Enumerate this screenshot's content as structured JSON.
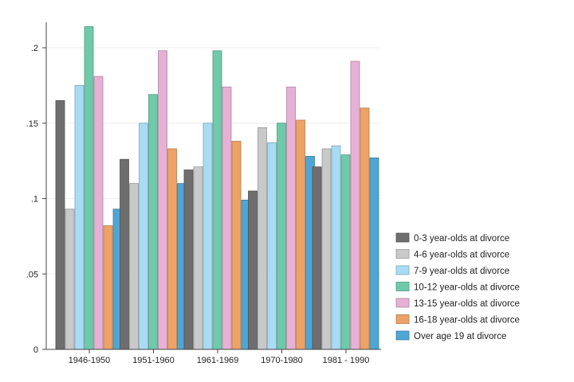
{
  "chart_data": {
    "type": "bar",
    "title": "",
    "xlabel": "",
    "ylabel": "",
    "ylim": [
      0,
      0.2
    ],
    "grid": true,
    "legend_position": "right",
    "y_ticks": [
      {
        "value": 0,
        "label": "0"
      },
      {
        "value": 0.05,
        "label": ".05"
      },
      {
        "value": 0.1,
        "label": ".1"
      },
      {
        "value": 0.15,
        "label": ".15"
      },
      {
        "value": 0.2,
        "label": ".2"
      }
    ],
    "categories": [
      "1946-1950",
      "1951-1960",
      "1961-1969",
      "1970-1980",
      "1981 - 1990"
    ],
    "series": [
      {
        "name": "0-3 year-olds at divorce",
        "color": "#6e6e6e",
        "values": [
          0.165,
          0.126,
          0.119,
          0.105,
          0.121
        ]
      },
      {
        "name": "4-6 year-olds at divorce",
        "color": "#c9c9c9",
        "values": [
          0.093,
          0.11,
          0.121,
          0.147,
          0.133
        ]
      },
      {
        "name": "7-9 year-olds at divorce",
        "color": "#a8dcf4",
        "values": [
          0.175,
          0.15,
          0.15,
          0.137,
          0.135
        ]
      },
      {
        "name": "10-12 year-olds at divorce",
        "color": "#6fcaaa",
        "values": [
          0.214,
          0.169,
          0.198,
          0.15,
          0.129
        ]
      },
      {
        "name": "13-15 year-olds at divorce",
        "color": "#e6b1d4",
        "values": [
          0.181,
          0.198,
          0.174,
          0.174,
          0.191
        ]
      },
      {
        "name": "16-18 year-olds at divorce",
        "color": "#eda366",
        "values": [
          0.082,
          0.133,
          0.138,
          0.152,
          0.16
        ]
      },
      {
        "name": "Over age 19 at divorce",
        "color": "#4fa6d4",
        "values": [
          0.093,
          0.11,
          0.099,
          0.128,
          0.127
        ]
      }
    ]
  }
}
